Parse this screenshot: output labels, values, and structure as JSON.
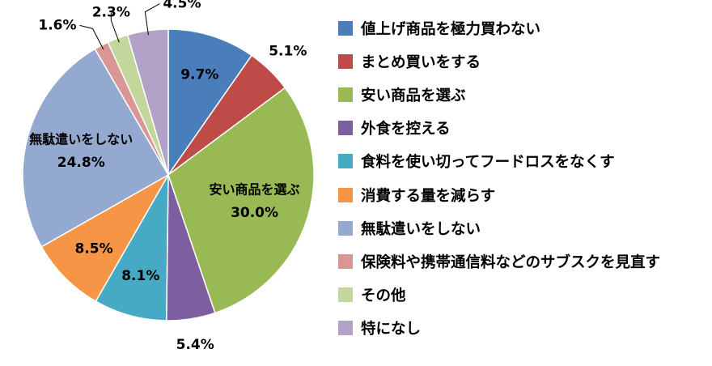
{
  "chart_data": {
    "type": "pie",
    "title": "",
    "slices": [
      {
        "label": "値上げ商品を極力買わない",
        "value": 9.7,
        "value_label": "9.7%",
        "color": "#4A7EBB",
        "label_color": "#000000"
      },
      {
        "label": "まとめ買いをする",
        "value": 5.1,
        "value_label": "5.1%",
        "color": "#BE4B48",
        "label_color": "#000000"
      },
      {
        "label": "安い商品を選ぶ",
        "value": 30.0,
        "value_label": "30.0%",
        "inner_label": "安い商品を選ぶ",
        "color": "#98B954",
        "label_color": "#000000"
      },
      {
        "label": "外食を控える",
        "value": 5.4,
        "value_label": "5.4%",
        "color": "#7D5FA0",
        "label_color": "#000000"
      },
      {
        "label": "食料を使い切ってフードロスをなくす",
        "value": 8.1,
        "value_label": "8.1%",
        "color": "#46AAC5",
        "label_color": "#000000"
      },
      {
        "label": "消費する量を減らす",
        "value": 8.5,
        "value_label": "8.5%",
        "color": "#F69546",
        "label_color": "#000000"
      },
      {
        "label": "無駄遣いをしない",
        "value": 24.8,
        "value_label": "24.8%",
        "inner_label": "無駄遣いをしない",
        "color": "#93A9CF",
        "label_color": "#000000"
      },
      {
        "label": "保険料や携帯通信料などのサブスクを見直す",
        "value": 1.6,
        "value_label": "1.6%",
        "color": "#D99694",
        "label_color": "#000000"
      },
      {
        "label": "その他",
        "value": 2.3,
        "value_label": "2.3%",
        "color": "#C3D69B",
        "label_color": "#000000"
      },
      {
        "label": "特になし",
        "value": 4.5,
        "value_label": "4.5%",
        "color": "#B3A2C7",
        "label_color": "#000000"
      }
    ],
    "legend_position": "right"
  }
}
